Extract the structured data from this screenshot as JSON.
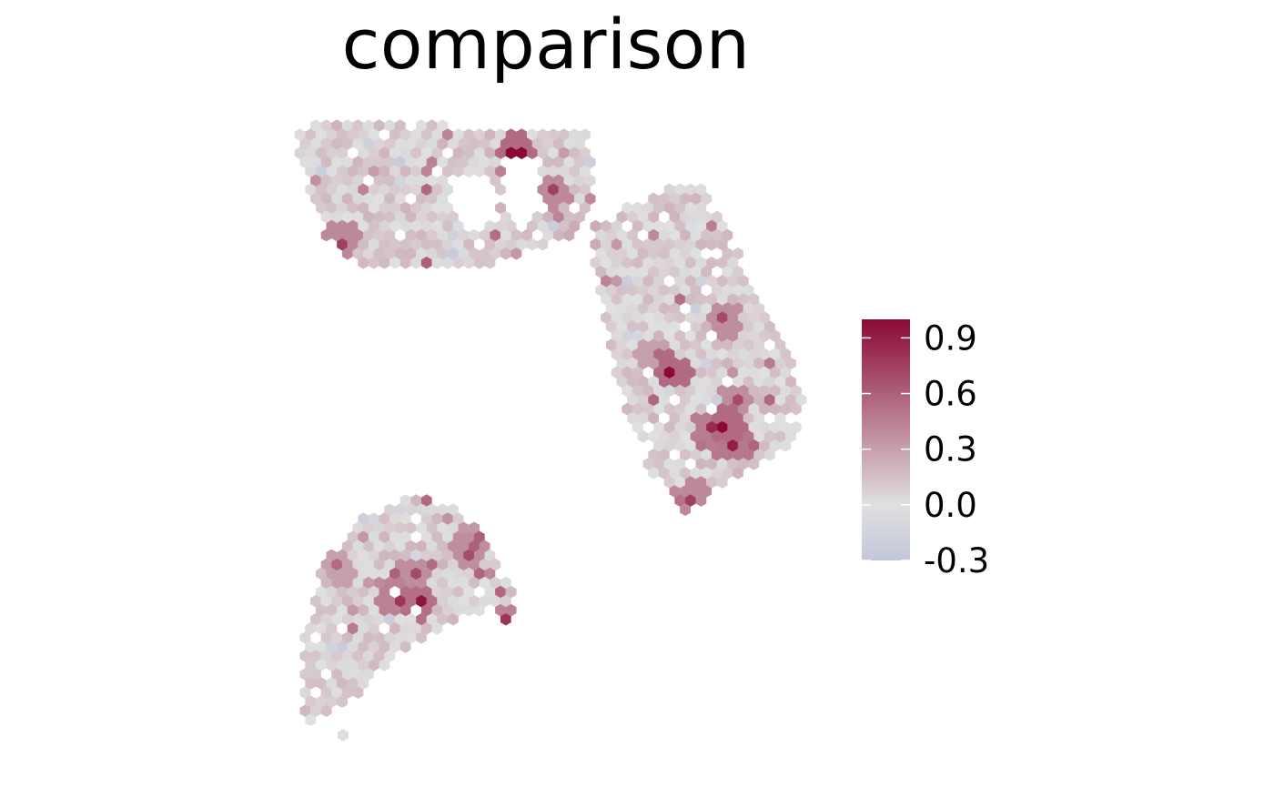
{
  "chart_data": {
    "type": "heatmap",
    "subtype": "spatial-hexagonal-spot-map",
    "title": "comparison",
    "xlabel": "",
    "ylabel": "",
    "grid": false,
    "legend": {
      "placement": "right",
      "type": "continuous-colorbar",
      "range": [
        -0.3,
        1.0
      ],
      "ticks": [
        -0.3,
        0.0,
        0.3,
        0.6,
        0.9
      ],
      "tick_labels": [
        "-0.3",
        "0.0",
        "0.3",
        "0.6",
        "0.9"
      ]
    },
    "colors": {
      "low": "#c3c6da",
      "mid": "#e0e0e0",
      "high": "#8b0a34"
    },
    "tissue_sections": [
      "top-left",
      "right",
      "bottom-left"
    ],
    "value_distribution": "most spots near 0.0 (light grey); scattered positive spots; highest values (~0.9-1.0) in right section hotspot"
  }
}
